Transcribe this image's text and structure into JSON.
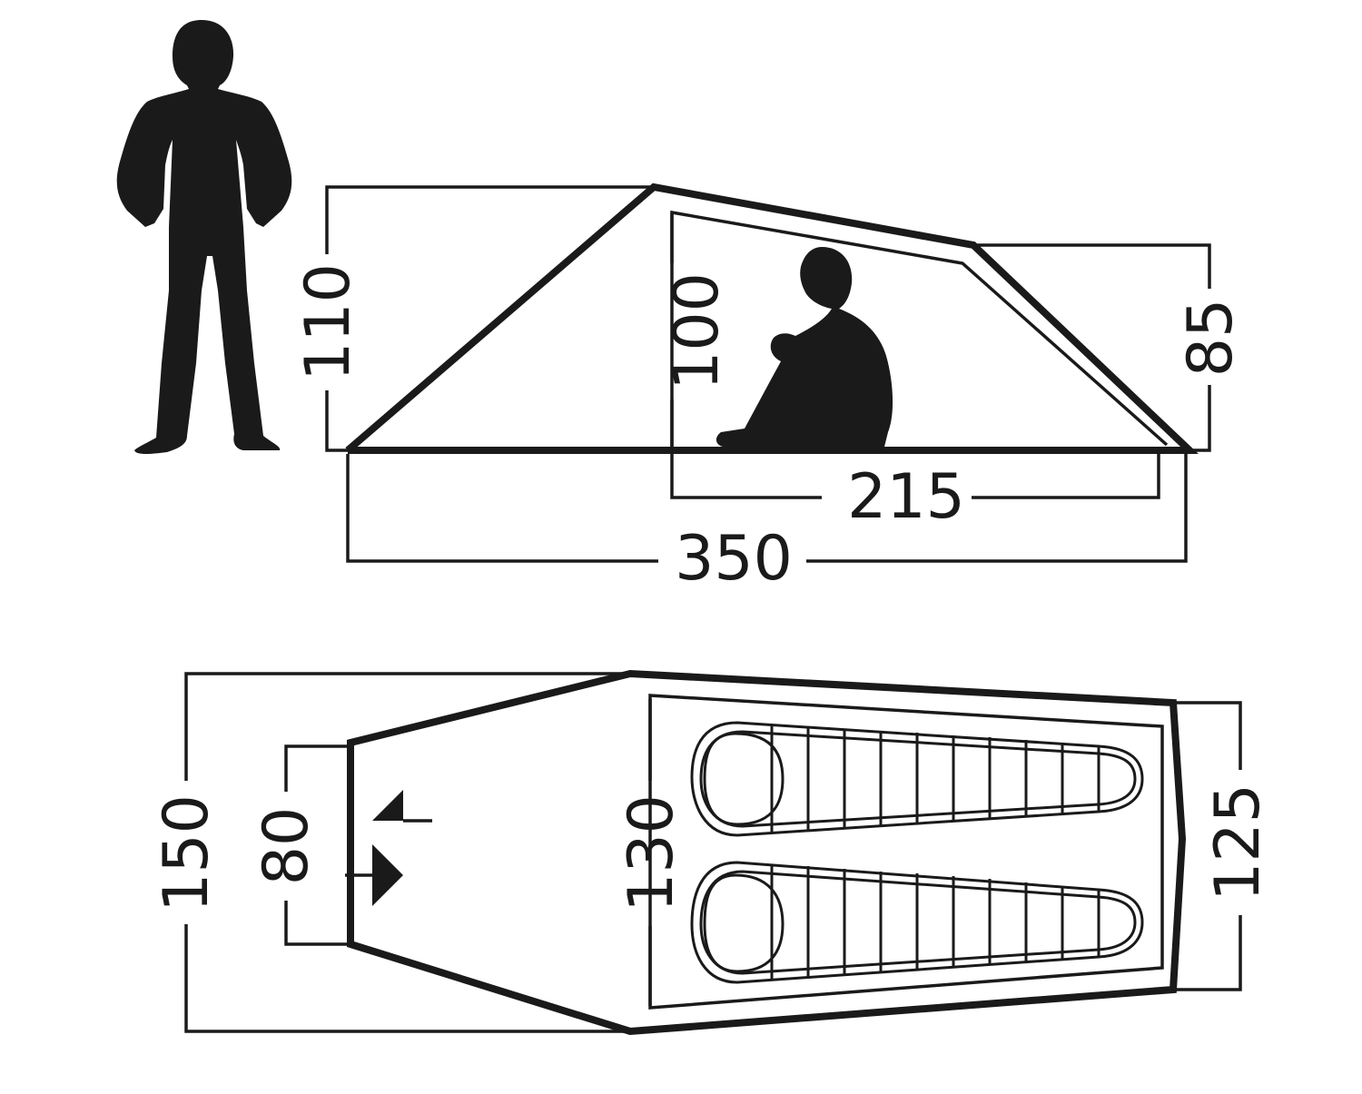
{
  "side_view": {
    "height_front": "110",
    "height_inner": "100",
    "height_rear": "85",
    "inner_length": "215",
    "total_length": "350"
  },
  "top_view": {
    "width_total": "150",
    "width_entrance": "80",
    "width_inner": "130",
    "width_rear": "125"
  },
  "icons": [
    "person-standing-icon",
    "person-sitting-icon",
    "sleeping-bag-icon",
    "entrance-arrows-icon"
  ],
  "colors": {
    "ink": "#1a1a1a",
    "background": "#ffffff"
  }
}
